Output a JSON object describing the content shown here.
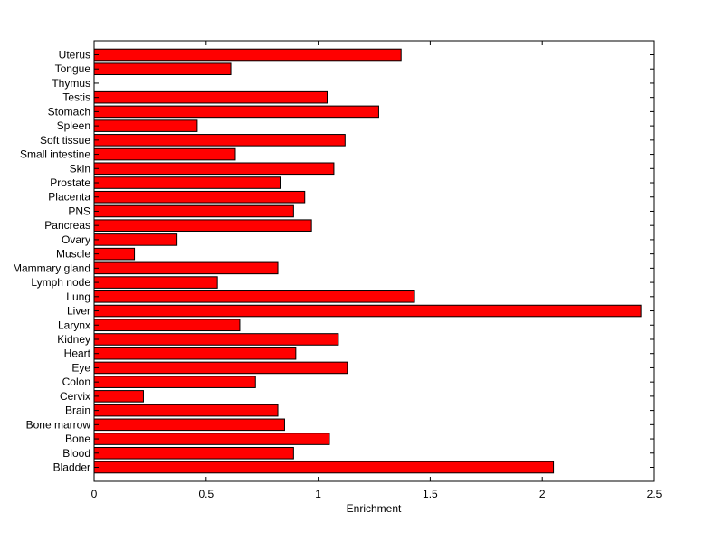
{
  "chart_data": {
    "type": "bar",
    "orientation": "horizontal",
    "xlabel": "Enrichment",
    "ylabel": "",
    "title": "",
    "xlim": [
      0,
      2.5
    ],
    "xticks": [
      {
        "value": 0,
        "label": "0"
      },
      {
        "value": 0.5,
        "label": "0.5"
      },
      {
        "value": 1,
        "label": "1"
      },
      {
        "value": 1.5,
        "label": "1.5"
      },
      {
        "value": 2,
        "label": "2"
      },
      {
        "value": 2.5,
        "label": "2.5"
      }
    ],
    "grid": false,
    "bar_color": "#ff0000",
    "categories": [
      "Uterus",
      "Tongue",
      "Thymus",
      "Testis",
      "Stomach",
      "Spleen",
      "Soft tissue",
      "Small intestine",
      "Skin",
      "Prostate",
      "Placenta",
      "PNS",
      "Pancreas",
      "Ovary",
      "Muscle",
      "Mammary gland",
      "Lymph node",
      "Lung",
      "Liver",
      "Larynx",
      "Kidney",
      "Heart",
      "Eye",
      "Colon",
      "Cervix",
      "Brain",
      "Bone marrow",
      "Bone",
      "Blood",
      "Bladder"
    ],
    "values": [
      1.37,
      0.61,
      0.0,
      1.04,
      1.27,
      0.46,
      1.12,
      0.63,
      1.07,
      0.83,
      0.94,
      0.89,
      0.97,
      0.37,
      0.18,
      0.82,
      0.55,
      1.43,
      2.44,
      0.65,
      1.09,
      0.9,
      1.13,
      0.72,
      0.22,
      0.82,
      0.85,
      1.05,
      0.89,
      2.05
    ]
  }
}
